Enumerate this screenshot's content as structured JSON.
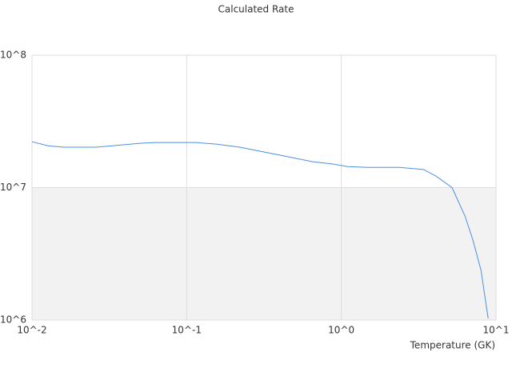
{
  "chart_data": {
    "type": "line",
    "title": "Calculated Rate",
    "x_label": "Temperature (GK)",
    "x": [
      0.01,
      0.0127,
      0.0161,
      0.0259,
      0.0329,
      0.0499,
      0.0634,
      0.115,
      0.155,
      0.221,
      0.28,
      0.4,
      0.65,
      0.87,
      1.1,
      1.49,
      2.4,
      3.4,
      4.1,
      5.2,
      6.3,
      7.1,
      8.0,
      8.9
    ],
    "values": [
      22200000,
      20700000,
      20200000,
      20200000,
      20700000,
      21600000,
      21900000,
      21900000,
      21300000,
      20200000,
      19100000,
      17600000,
      15700000,
      15100000,
      14400000,
      14200000,
      14200000,
      13700000,
      12200000,
      10000000,
      6100000,
      4000000,
      2370000,
      1030000
    ],
    "color": "#4a90e2",
    "xlog": true,
    "ylog": true,
    "xlim": [
      0.01,
      10
    ],
    "ylim": [
      1000000,
      100000000
    ],
    "xticks": [
      {
        "value": 0.01,
        "label": "10^-2"
      },
      {
        "value": 0.1,
        "label": "10^-1"
      },
      {
        "value": 1,
        "label": "10^0"
      },
      {
        "value": 10,
        "label": "10^1"
      }
    ],
    "yticks": [
      {
        "value": 1000000,
        "label": "10^6"
      },
      {
        "value": 10000000,
        "label": "10^7"
      },
      {
        "value": 100000000,
        "label": "10^8"
      }
    ],
    "grid": true
  }
}
